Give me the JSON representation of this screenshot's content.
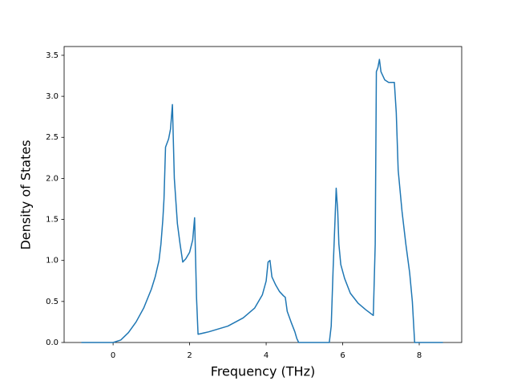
{
  "chart_data": {
    "type": "line",
    "x_label": "Frequency (THz)",
    "y_label": "Density of States",
    "x": [
      -0.83,
      0,
      0.2,
      0.4,
      0.6,
      0.8,
      1.0,
      1.1,
      1.2,
      1.25,
      1.3,
      1.33,
      1.37,
      1.45,
      1.5,
      1.55,
      1.6,
      1.68,
      1.75,
      1.82,
      1.9,
      2.0,
      2.08,
      2.13,
      2.18,
      2.22,
      2.5,
      3.0,
      3.4,
      3.7,
      3.9,
      4.0,
      4.05,
      4.1,
      4.15,
      4.25,
      4.35,
      4.45,
      4.5,
      4.55,
      4.65,
      4.75,
      4.8,
      4.85,
      5.65,
      5.7,
      5.75,
      5.8,
      5.83,
      5.87,
      5.9,
      5.95,
      6.05,
      6.2,
      6.4,
      6.6,
      6.8,
      6.85,
      6.88,
      6.92,
      6.96,
      7.0,
      7.1,
      7.2,
      7.35,
      7.4,
      7.45,
      7.55,
      7.65,
      7.75,
      7.82,
      7.88,
      8.62
    ],
    "series": [
      {
        "color": "#1f77b4",
        "values": [
          0,
          0,
          0.03,
          0.12,
          0.25,
          0.42,
          0.65,
          0.8,
          1.0,
          1.2,
          1.5,
          1.75,
          2.38,
          2.48,
          2.6,
          2.9,
          2.0,
          1.45,
          1.2,
          0.98,
          1.02,
          1.1,
          1.25,
          1.52,
          0.55,
          0.1,
          0.13,
          0.2,
          0.3,
          0.42,
          0.58,
          0.75,
          0.98,
          1.0,
          0.8,
          0.7,
          0.62,
          0.57,
          0.55,
          0.38,
          0.25,
          0.13,
          0.05,
          0,
          0,
          0.2,
          0.9,
          1.5,
          1.88,
          1.6,
          1.2,
          0.95,
          0.78,
          0.6,
          0.48,
          0.4,
          0.33,
          1.2,
          3.3,
          3.35,
          3.45,
          3.3,
          3.2,
          3.17,
          3.17,
          2.8,
          2.1,
          1.6,
          1.2,
          0.85,
          0.5,
          0,
          0
        ]
      }
    ],
    "xlim": [
      -1.28,
      9.11
    ],
    "ylim": [
      0,
      3.607
    ],
    "xticks": [
      0,
      2,
      4,
      6,
      8
    ],
    "yticks": [
      {
        "value": 0,
        "label": "0.0"
      },
      0.5,
      {
        "value": 1,
        "label": "1.0"
      },
      1.5,
      {
        "value": 2,
        "label": "2.0"
      },
      2.5,
      {
        "value": 3,
        "label": "3.0"
      },
      3.5
    ]
  }
}
